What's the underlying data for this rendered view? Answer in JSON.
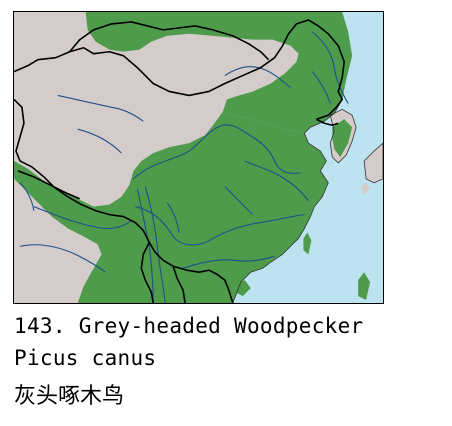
{
  "caption": {
    "common_name": "143. Grey-headed Woodpecker",
    "scientific_name": "Picus canus",
    "chinese_name": "灰头啄木鸟"
  },
  "map": {
    "colors": {
      "land": "#d4cccb",
      "range": "#4e9c4b",
      "sea": "#bde3f0",
      "river": "#1f4f8a",
      "border": "#000000",
      "coast": "#333333"
    }
  }
}
